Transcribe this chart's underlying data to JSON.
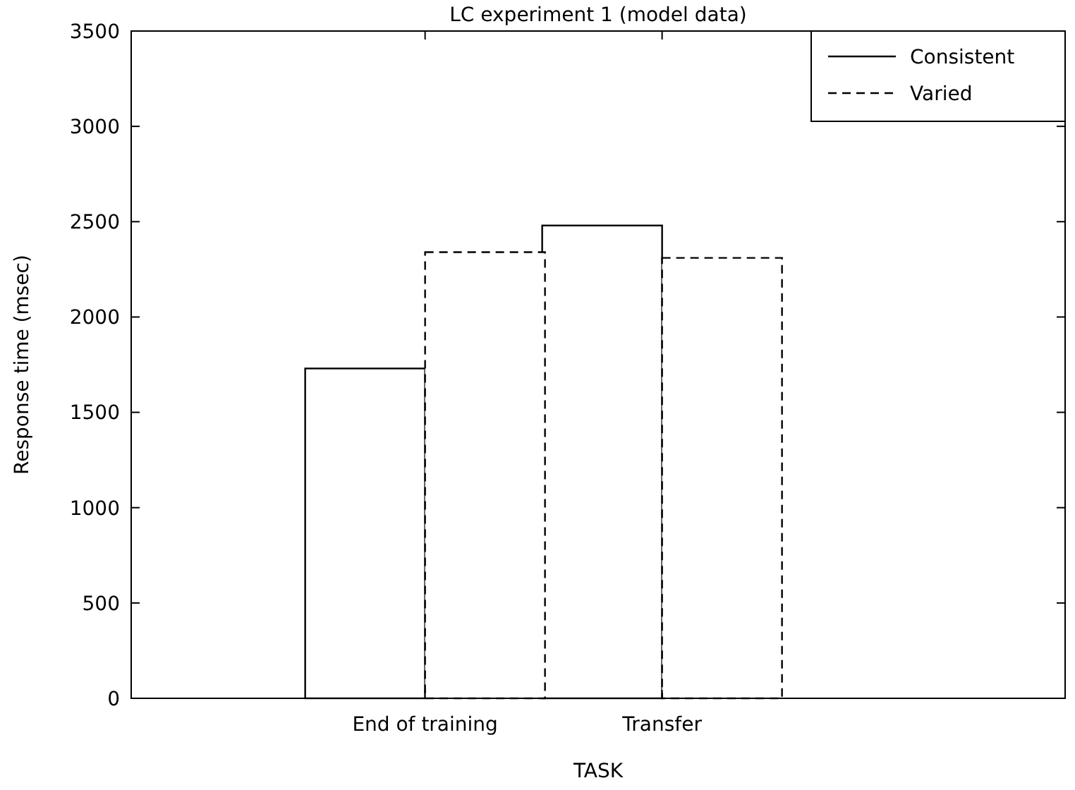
{
  "chart_data": {
    "type": "bar",
    "title": "LC experiment 1 (model data)",
    "xlabel": "TASK",
    "ylabel": "Response time (msec)",
    "categories": [
      "End of training",
      "Transfer"
    ],
    "series": [
      {
        "name": "Consistent",
        "color": "#000000",
        "line_style": "solid",
        "values": [
          1730,
          2480
        ]
      },
      {
        "name": "Varied",
        "color": "#000000",
        "line_style": "dashed",
        "values": [
          2340,
          2310
        ]
      }
    ],
    "ylim": [
      0,
      3500
    ],
    "yticks": [
      0,
      500,
      1000,
      1500,
      2000,
      2500,
      3000,
      3500
    ],
    "grid": false,
    "legend": "top right"
  }
}
